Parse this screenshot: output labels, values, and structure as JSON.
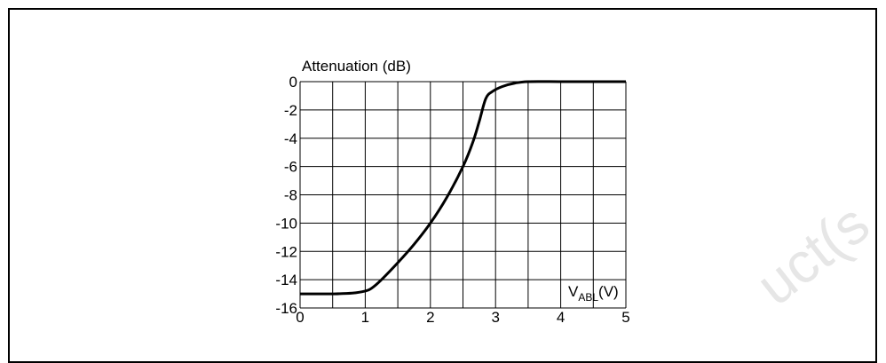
{
  "watermark": "uct(s",
  "chart_data": {
    "type": "line",
    "ylabel": "Attenuation (dB)",
    "xlabel": {
      "main": "V",
      "sub": "ABL",
      "unit": "(V)"
    },
    "xlim": [
      0,
      5
    ],
    "ylim": [
      -16,
      0
    ],
    "x_ticks": [
      0,
      0.5,
      1,
      1.5,
      2,
      2.5,
      3,
      3.5,
      4,
      4.5,
      5
    ],
    "x_tick_labels": [
      "0",
      "1",
      "2",
      "3",
      "4",
      "5"
    ],
    "y_ticks": [
      0,
      -2,
      -4,
      -6,
      -8,
      -10,
      -12,
      -14,
      -16
    ],
    "y_tick_labels": [
      "0",
      "-2",
      "-4",
      "-6",
      "-8",
      "-10",
      "-12",
      "-14",
      "-16"
    ],
    "grid": true,
    "series": [
      {
        "color": "#000000",
        "points": [
          [
            0,
            -15
          ],
          [
            0.5,
            -15
          ],
          [
            0.8,
            -14.95
          ],
          [
            1.0,
            -14.8
          ],
          [
            1.1,
            -14.6
          ],
          [
            1.25,
            -14.0
          ],
          [
            1.5,
            -12.8
          ],
          [
            1.75,
            -11.5
          ],
          [
            2.0,
            -10.0
          ],
          [
            2.25,
            -8.2
          ],
          [
            2.5,
            -6.0
          ],
          [
            2.65,
            -4.3
          ],
          [
            2.75,
            -2.8
          ],
          [
            2.85,
            -1.2
          ],
          [
            2.95,
            -0.7
          ],
          [
            3.1,
            -0.35
          ],
          [
            3.3,
            -0.1
          ],
          [
            3.5,
            0
          ],
          [
            4.0,
            0
          ],
          [
            4.5,
            0
          ],
          [
            5.0,
            0
          ]
        ]
      }
    ]
  }
}
